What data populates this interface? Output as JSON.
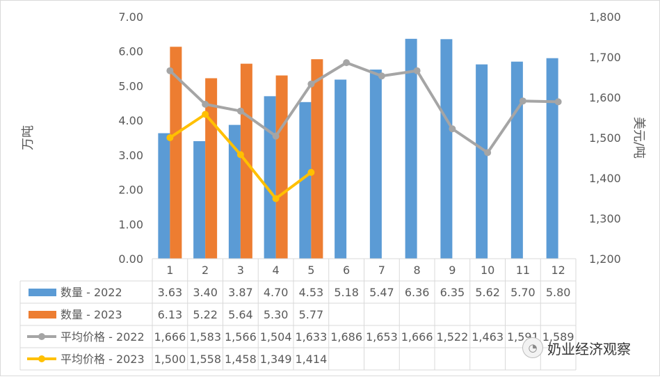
{
  "chart_data": {
    "type": "bar",
    "categories": [
      "1",
      "2",
      "3",
      "4",
      "5",
      "6",
      "7",
      "8",
      "9",
      "10",
      "11",
      "12"
    ],
    "y_left": {
      "label": "万吨",
      "ticks": [
        "0.00",
        "1.00",
        "2.00",
        "3.00",
        "4.00",
        "5.00",
        "6.00",
        "7.00"
      ],
      "range": [
        0,
        7
      ]
    },
    "y_right": {
      "label": "美元/吨",
      "ticks": [
        "1,200",
        "1,300",
        "1,400",
        "1,500",
        "1,600",
        "1,700",
        "1,800"
      ],
      "range": [
        1200,
        1800
      ]
    },
    "series": [
      {
        "name": "数量 - 2022",
        "type": "bar",
        "axis": "left",
        "color": "#5b9bd5",
        "values": [
          3.63,
          3.4,
          3.87,
          4.7,
          4.53,
          5.18,
          5.47,
          6.36,
          6.35,
          5.62,
          5.7,
          5.8
        ],
        "labels": [
          "3.63",
          "3.40",
          "3.87",
          "4.70",
          "4.53",
          "5.18",
          "5.47",
          "6.36",
          "6.35",
          "5.62",
          "5.70",
          "5.80"
        ]
      },
      {
        "name": "数量 - 2023",
        "type": "bar",
        "axis": "left",
        "color": "#ed7d31",
        "values": [
          6.13,
          5.22,
          5.64,
          5.3,
          5.77,
          null,
          null,
          null,
          null,
          null,
          null,
          null
        ],
        "labels": [
          "6.13",
          "5.22",
          "5.64",
          "5.30",
          "5.77",
          "",
          "",
          "",
          "",
          "",
          "",
          ""
        ]
      },
      {
        "name": "平均价格 - 2022",
        "type": "line",
        "axis": "right",
        "color": "#a5a5a5",
        "values": [
          1666,
          1583,
          1566,
          1504,
          1633,
          1686,
          1653,
          1666,
          1522,
          1463,
          1591,
          1589
        ],
        "labels": [
          "1,666",
          "1,583",
          "1,566",
          "1,504",
          "1,633",
          "1,686",
          "1,653",
          "1,666",
          "1,522",
          "1,463",
          "1,591",
          "1,589"
        ]
      },
      {
        "name": "平均价格 - 2023",
        "type": "line",
        "axis": "right",
        "color": "#ffc000",
        "values": [
          1500,
          1558,
          1458,
          1349,
          1414,
          null,
          null,
          null,
          null,
          null,
          null,
          null
        ],
        "labels": [
          "1,500",
          "1,558",
          "1,458",
          "1,349",
          "1,414",
          "",
          "",
          "",
          "",
          "",
          "",
          ""
        ]
      }
    ],
    "gridlines": false,
    "legend": "data-table"
  },
  "watermark": {
    "text": "奶业经济观察",
    "icon": "wechat-icon"
  }
}
